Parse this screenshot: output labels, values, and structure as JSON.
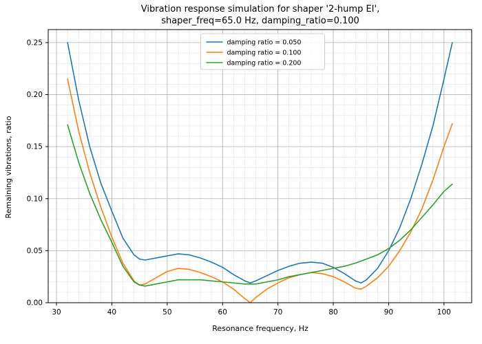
{
  "figure": {
    "background": "#ffffff"
  },
  "chart_data": {
    "type": "line",
    "title_lines": [
      "Vibration response simulation for shaper '2-hump EI',",
      "shaper_freq=65.0 Hz, damping_ratio=0.100"
    ],
    "title": "Vibration response simulation for shaper '2-hump EI', shaper_freq=65.0 Hz, damping_ratio=0.100",
    "xlabel": "Resonance frequency, Hz",
    "ylabel": "Remaining vibrations, ratio",
    "xlim": [
      28.5,
      105
    ],
    "ylim": [
      0,
      0.2625
    ],
    "xticks": [
      30,
      40,
      50,
      60,
      70,
      80,
      90,
      100
    ],
    "xtick_labels": [
      "30",
      "40",
      "50",
      "60",
      "70",
      "80",
      "90",
      "100"
    ],
    "yticks": [
      0,
      0.05,
      0.1,
      0.15,
      0.2,
      0.25
    ],
    "ytick_labels": [
      "0.00",
      "0.05",
      "0.10",
      "0.15",
      "0.20",
      "0.25"
    ],
    "grid": {
      "major_color": "#b0b0b0",
      "minor_color": "#e2e2e2",
      "minor_x_step": 2,
      "minor_y_step": 0.01
    },
    "legend_position": "upper center",
    "x": [
      32,
      34,
      36,
      38,
      40,
      42,
      44,
      45,
      46,
      48,
      50,
      52,
      54,
      56,
      58,
      60,
      62,
      64,
      65,
      66,
      68,
      70,
      72,
      74,
      76,
      78,
      80,
      82,
      84,
      85,
      86,
      88,
      90,
      92,
      94,
      96,
      98,
      100,
      101.5
    ],
    "series": [
      {
        "name": "damping ratio = 0.050",
        "color": "#1f77b4",
        "values": [
          0.25,
          0.195,
          0.15,
          0.115,
          0.088,
          0.062,
          0.046,
          0.042,
          0.041,
          0.043,
          0.045,
          0.047,
          0.046,
          0.043,
          0.039,
          0.034,
          0.027,
          0.021,
          0.019,
          0.021,
          0.026,
          0.031,
          0.035,
          0.038,
          0.039,
          0.038,
          0.034,
          0.028,
          0.021,
          0.019,
          0.022,
          0.033,
          0.05,
          0.072,
          0.1,
          0.133,
          0.17,
          0.215,
          0.25
        ]
      },
      {
        "name": "damping ratio = 0.100",
        "color": "#ff7f0e",
        "values": [
          0.215,
          0.165,
          0.125,
          0.092,
          0.063,
          0.038,
          0.021,
          0.017,
          0.018,
          0.024,
          0.03,
          0.033,
          0.032,
          0.029,
          0.025,
          0.02,
          0.013,
          0.004,
          0.0,
          0.005,
          0.013,
          0.019,
          0.024,
          0.027,
          0.029,
          0.028,
          0.025,
          0.02,
          0.014,
          0.013,
          0.016,
          0.024,
          0.035,
          0.05,
          0.068,
          0.09,
          0.118,
          0.15,
          0.172
        ]
      },
      {
        "name": "damping ratio = 0.200",
        "color": "#2ca02c",
        "values": [
          0.171,
          0.135,
          0.105,
          0.08,
          0.058,
          0.035,
          0.02,
          0.017,
          0.016,
          0.018,
          0.02,
          0.022,
          0.022,
          0.022,
          0.021,
          0.02,
          0.019,
          0.018,
          0.018,
          0.018,
          0.02,
          0.022,
          0.025,
          0.027,
          0.029,
          0.031,
          0.033,
          0.035,
          0.038,
          0.04,
          0.042,
          0.046,
          0.052,
          0.06,
          0.07,
          0.082,
          0.094,
          0.107,
          0.114
        ]
      }
    ]
  }
}
